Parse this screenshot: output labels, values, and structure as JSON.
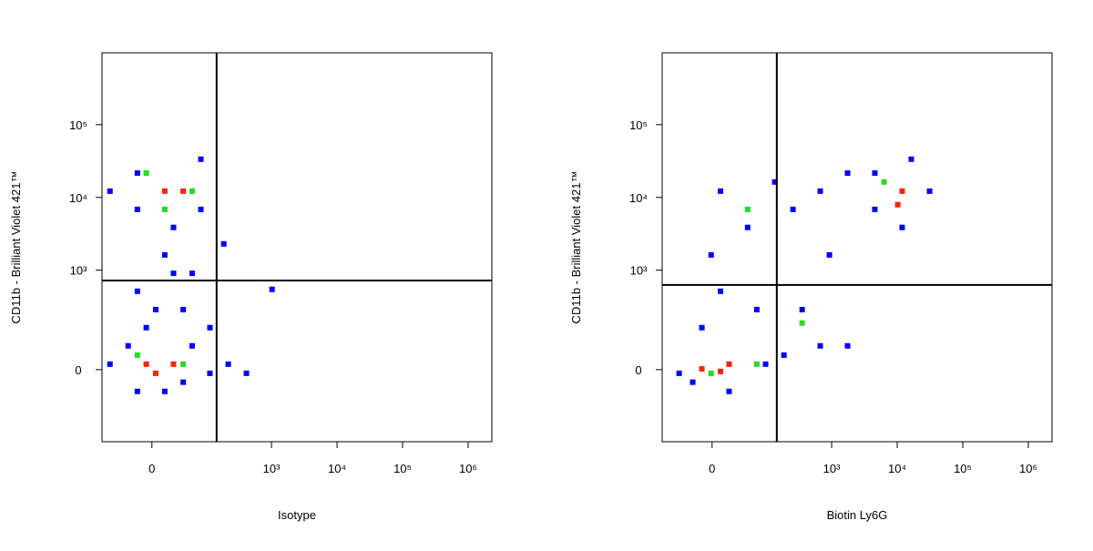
{
  "chart_data": [
    {
      "type": "scatter",
      "xlabel": "Isotype",
      "ylabel": "CD11b - Brilliant Violet 421™",
      "xscale": "biexponential",
      "yscale": "biexponential",
      "xlim": [
        -84,
        2300000
      ],
      "ylim": [
        -416,
        970000
      ],
      "xticks": [
        0,
        {
          "value": 1000,
          "label": "10³"
        },
        {
          "value": 10000,
          "label": "10⁴"
        },
        {
          "value": 100000,
          "label": "10⁵"
        },
        {
          "value": 1000000,
          "label": "10⁶"
        }
      ],
      "yticks": [
        0,
        {
          "value": 1000,
          "label": "10³"
        },
        {
          "value": 10000,
          "label": "10⁴"
        },
        {
          "value": 100000,
          "label": "10⁵"
        }
      ],
      "gates": {
        "x": 144,
        "y": 720
      },
      "series": [
        {
          "color": "#0000ff",
          "x": [
            -62,
            -16,
            81,
            81,
            -16,
            25,
            14,
            58,
            -16,
            40,
            -6,
            113,
            -28,
            -62,
            113,
            -16,
            40,
            218,
            414,
            1020,
            186,
            25,
            4,
            58,
            14
          ],
          "values": [
            12200,
            21600,
            33500,
            6850,
            6850,
            3870,
            1620,
            904,
            510,
            281,
            151,
            151,
            71,
            15,
            -10,
            -64,
            -35,
            15,
            -10,
            542,
            2300,
            904,
            281,
            71,
            -64
          ]
        },
        {
          "color": "#22dd22",
          "x": [
            -6,
            58,
            -16,
            40,
            14
          ],
          "values": [
            21600,
            12200,
            41,
            15,
            6850
          ]
        },
        {
          "color": "#ff2200",
          "x": [
            14,
            40,
            -6,
            4,
            25
          ],
          "values": [
            12200,
            12200,
            15,
            -10,
            15
          ]
        }
      ]
    },
    {
      "type": "scatter",
      "xlabel": "Biotin Ly6G",
      "ylabel": "CD11b - Brilliant Violet 421™",
      "xscale": "biexponential",
      "yscale": "biexponential",
      "xlim": [
        -84,
        2300000
      ],
      "ylim": [
        -416,
        970000
      ],
      "xticks": [
        0,
        {
          "value": 1000,
          "label": "10³"
        },
        {
          "value": 10000,
          "label": "10⁴"
        },
        {
          "value": 100000,
          "label": "10⁵"
        },
        {
          "value": 1000000,
          "label": "10⁶"
        }
      ],
      "yticks": [
        0,
        {
          "value": 1000,
          "label": "10³"
        },
        {
          "value": 10000,
          "label": "10⁴"
        },
        {
          "value": 100000,
          "label": "10⁵"
        }
      ],
      "gates": {
        "x": 144,
        "y": 624
      },
      "series": [
        {
          "color": "#0000ff",
          "x": [
            -43,
            -22,
            19,
            96,
            186,
            670,
            1750,
            354,
            9,
            69,
            -1,
            48,
            9,
            134,
            256,
            670,
            1750,
            4560,
            31200,
            11900,
            4560,
            16400,
            925,
            -11
          ],
          "values": [
            -10,
            -35,
            -64,
            15,
            41,
            71,
            71,
            281,
            510,
            281,
            1620,
            3870,
            12200,
            16300,
            6850,
            12200,
            21600,
            21600,
            12200,
            3870,
            6850,
            33500,
            1620,
            151
          ]
        },
        {
          "color": "#22dd22",
          "x": [
            -1,
            69,
            6300,
            48,
            354
          ],
          "values": [
            -10,
            15,
            16300,
            6850,
            178
          ]
        },
        {
          "color": "#ff2200",
          "x": [
            -11,
            19,
            9,
            11900,
            10200
          ],
          "values": [
            2,
            15,
            -5,
            12200,
            7950
          ]
        }
      ]
    }
  ]
}
